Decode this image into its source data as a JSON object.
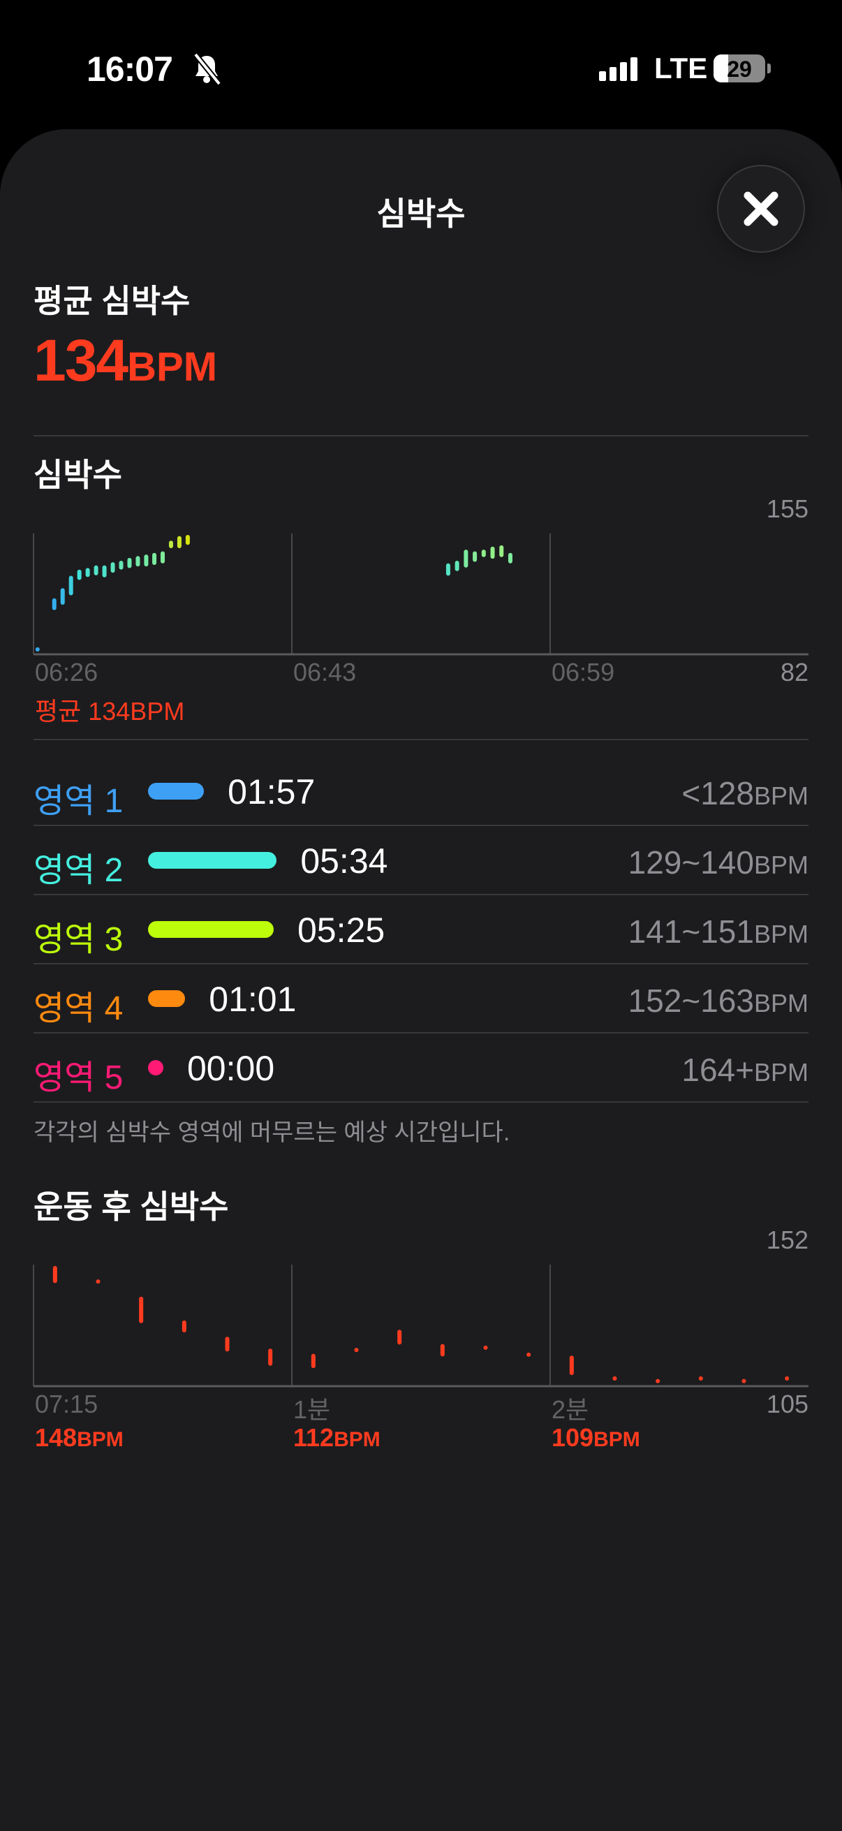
{
  "status_bar": {
    "time": "16:07",
    "silent_icon": "bell-slash-icon",
    "network": "LTE",
    "battery": "29",
    "signal_bars": 4
  },
  "sheet": {
    "title": "심박수",
    "close_icon": "xmark-icon"
  },
  "average": {
    "label": "평균 심박수",
    "value": "134",
    "unit": "BPM"
  },
  "colors": {
    "accent": "#ff3b1f",
    "zone1": "#3ea0f5",
    "zone2": "#45efdf",
    "zone3": "#bdfc0a",
    "zone4": "#ff8a10",
    "zone5": "#ff1a75"
  },
  "heart_rate_section": {
    "title": "심박수",
    "avg_label": "평균 134BPM"
  },
  "zones": [
    {
      "label": "영역 1",
      "time": "01:57",
      "range": "<128",
      "unit": "BPM"
    },
    {
      "label": "영역 2",
      "time": "05:34",
      "range": "129~140",
      "unit": "BPM"
    },
    {
      "label": "영역 3",
      "time": "05:25",
      "range": "141~151",
      "unit": "BPM"
    },
    {
      "label": "영역 4",
      "time": "01:01",
      "range": "152~163",
      "unit": "BPM"
    },
    {
      "label": "영역 5",
      "time": "00:00",
      "range": "164+",
      "unit": "BPM"
    }
  ],
  "zones_note": "각각의 심박수 영역에 머무르는 예상 시간입니다.",
  "recovery_section": {
    "title": "운동 후 심박수",
    "readings": [
      {
        "value": "148",
        "unit": "BPM"
      },
      {
        "value": "112",
        "unit": "BPM"
      },
      {
        "value": "109",
        "unit": "BPM"
      }
    ]
  },
  "chart_data": [
    {
      "type": "range-bar",
      "ylim": [
        82,
        155
      ],
      "y_tick_labels": [
        "155",
        "82"
      ],
      "x_tick_labels": [
        "06:26",
        "06:43",
        "06:59"
      ],
      "grid": true,
      "points": [
        {
          "t": "06:26:16",
          "lo": 85,
          "hi": 85
        },
        {
          "t": "06:27:22",
          "lo": 110,
          "hi": 114.6
        },
        {
          "t": "06:27:55",
          "lo": 113.2,
          "hi": 120.7
        },
        {
          "t": "06:28:28",
          "lo": 118.9,
          "hi": 128.2
        },
        {
          "t": "06:29:01",
          "lo": 128.2,
          "hi": 131.9
        },
        {
          "t": "06:29:34",
          "lo": 130,
          "hi": 132.9
        },
        {
          "t": "06:30:07",
          "lo": 131,
          "hi": 134.5
        },
        {
          "t": "06:30:40",
          "lo": 129.8,
          "hi": 134.5
        },
        {
          "t": "06:31:13",
          "lo": 132.6,
          "hi": 136.4
        },
        {
          "t": "06:31:46",
          "lo": 134.5,
          "hi": 137.3
        },
        {
          "t": "06:32:19",
          "lo": 135.4,
          "hi": 139
        },
        {
          "t": "06:32:52",
          "lo": 136.4,
          "hi": 140.1
        },
        {
          "t": "06:33:25",
          "lo": 136.4,
          "hi": 141
        },
        {
          "t": "06:33:57",
          "lo": 137.3,
          "hi": 142
        },
        {
          "t": "06:34:30",
          "lo": 138.2,
          "hi": 143
        },
        {
          "t": "06:35:03",
          "lo": 147.4,
          "hi": 149.4
        },
        {
          "t": "06:35:36",
          "lo": 147.4,
          "hi": 152.2
        },
        {
          "t": "06:36:09",
          "lo": 149.4,
          "hi": 152.9
        },
        {
          "t": "06:52:41",
          "lo": 130.8,
          "hi": 135.7
        },
        {
          "t": "06:53:14",
          "lo": 133.6,
          "hi": 137.3
        },
        {
          "t": "06:53:47",
          "lo": 135.7,
          "hi": 144
        },
        {
          "t": "06:54:20",
          "lo": 139.2,
          "hi": 143
        },
        {
          "t": "06:54:53",
          "lo": 142,
          "hi": 144
        },
        {
          "t": "06:55:26",
          "lo": 141,
          "hi": 145.8
        },
        {
          "t": "06:55:59",
          "lo": 142,
          "hi": 146.6
        },
        {
          "t": "06:56:32",
          "lo": 138.2,
          "hi": 142
        }
      ]
    },
    {
      "type": "range-bar",
      "ylim": [
        105,
        152
      ],
      "y_tick_labels": [
        "152",
        "105"
      ],
      "x_tick_labels": [
        "07:15",
        "1분",
        "2분"
      ],
      "grid": true,
      "color": "#ff3b1f",
      "points": [
        {
          "sec": 5,
          "lo": 145.7,
          "hi": 150.7
        },
        {
          "sec": 15,
          "lo": 145.5,
          "hi": 145.5
        },
        {
          "sec": 25,
          "lo": 130.2,
          "hi": 138.8
        },
        {
          "sec": 35,
          "lo": 126.6,
          "hi": 129.6
        },
        {
          "sec": 45,
          "lo": 119.2,
          "hi": 123.3
        },
        {
          "sec": 55,
          "lo": 113.7,
          "hi": 118.7
        },
        {
          "sec": 65,
          "lo": 112.8,
          "hi": 116.7
        },
        {
          "sec": 75,
          "lo": 119,
          "hi": 119
        },
        {
          "sec": 85,
          "lo": 121.9,
          "hi": 126
        },
        {
          "sec": 95,
          "lo": 117.3,
          "hi": 120.5
        },
        {
          "sec": 105,
          "lo": 119.9,
          "hi": 119.9
        },
        {
          "sec": 115,
          "lo": 117.2,
          "hi": 117.2
        },
        {
          "sec": 125,
          "lo": 110.1,
          "hi": 116
        },
        {
          "sec": 135,
          "lo": 108,
          "hi": 108
        },
        {
          "sec": 145,
          "lo": 107,
          "hi": 107
        },
        {
          "sec": 155,
          "lo": 108,
          "hi": 108
        },
        {
          "sec": 165,
          "lo": 107,
          "hi": 107
        },
        {
          "sec": 175,
          "lo": 108,
          "hi": 108
        }
      ]
    }
  ]
}
